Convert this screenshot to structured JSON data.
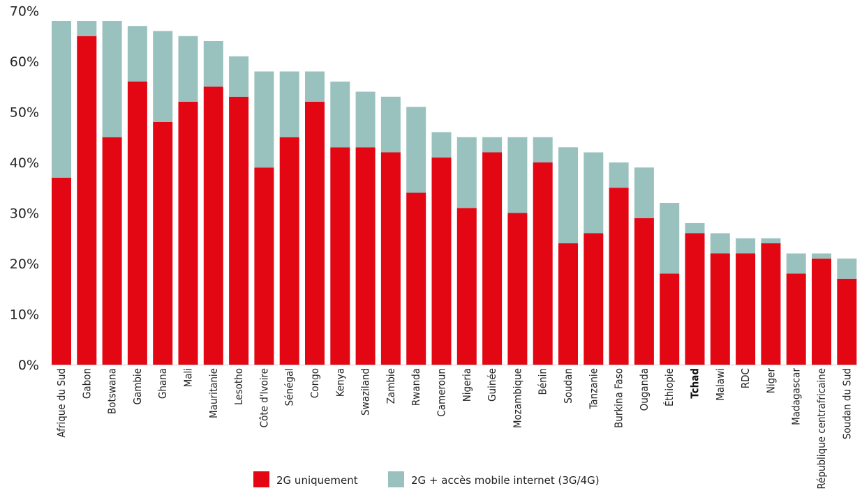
{
  "chart_data": {
    "type": "bar",
    "stacked": true,
    "categories": [
      "Afrique du Sud",
      "Gabon",
      "Botswana",
      "Gambie",
      "Ghana",
      "Mali",
      "Mauritanie",
      "Lesotho",
      "Côte d'Ivoire",
      "Sénégal",
      "Congo",
      "Kenya",
      "Swaziland",
      "Zambie",
      "Rwanda",
      "Cameroun",
      "Nigeria",
      "Guinée",
      "Mozambique",
      "Bénin",
      "Soudan",
      "Tanzanie",
      "Burkina Faso",
      "Ouganda",
      "Éthiopie",
      "Tchad",
      "Malawi",
      "RDC",
      "Niger",
      "Madagascar",
      "République centrafricaine",
      "Soudan du Sud"
    ],
    "highlight_category": "Tchad",
    "series": [
      {
        "name": "2G uniquement",
        "color": "#e30613",
        "values": [
          37,
          65,
          45,
          56,
          48,
          52,
          55,
          53,
          39,
          45,
          52,
          43,
          43,
          42,
          34,
          41,
          31,
          42,
          30,
          40,
          24,
          26,
          35,
          29,
          18,
          26,
          22,
          22,
          24,
          18,
          21,
          17
        ]
      },
      {
        "name": "2G + accès mobile internet (3G/4G)",
        "color": "#99c2bf",
        "values": [
          31,
          3,
          23,
          11,
          18,
          13,
          9,
          8,
          19,
          13,
          6,
          13,
          11,
          11,
          17,
          5,
          14,
          3,
          15,
          5,
          19,
          16,
          5,
          10,
          14,
          2,
          4,
          3,
          1,
          4,
          1,
          4
        ]
      }
    ],
    "yticks": [
      "0%",
      "10%",
      "20%",
      "30%",
      "40%",
      "50%",
      "60%",
      "70%"
    ],
    "ylim": [
      0,
      70
    ],
    "xlabel": "",
    "ylabel": "",
    "grid": false,
    "legend_position": "bottom-center"
  }
}
